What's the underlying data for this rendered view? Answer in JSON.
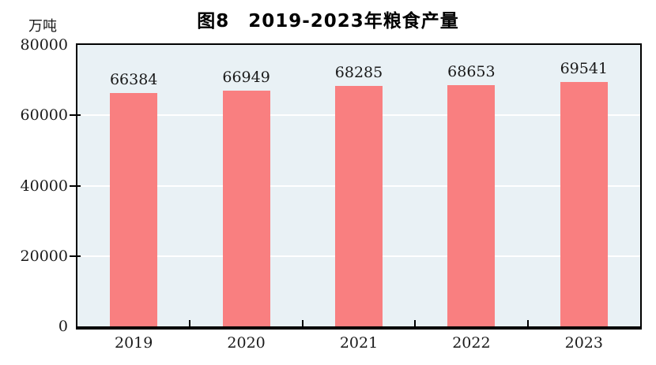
{
  "chart_data": {
    "type": "bar",
    "title": "图8　2019-2023年粮食产量",
    "unit_label": "万吨",
    "categories": [
      "2019",
      "2020",
      "2021",
      "2022",
      "2023"
    ],
    "values": [
      66384,
      66949,
      68285,
      68653,
      69541
    ],
    "xlabel": "",
    "ylabel": "万吨",
    "ylim": [
      0,
      80000
    ],
    "yticks": [
      0,
      20000,
      40000,
      60000,
      80000
    ],
    "grid": true,
    "legend_position": "none",
    "value_labels_shown": true,
    "colors": {
      "bar": "#F97F80",
      "plot_bg": "#E9F1F5",
      "gridline": "#FFFFFF",
      "axis": "#000000",
      "label_text": "#1A1A1A",
      "title_text": "#000000"
    }
  }
}
